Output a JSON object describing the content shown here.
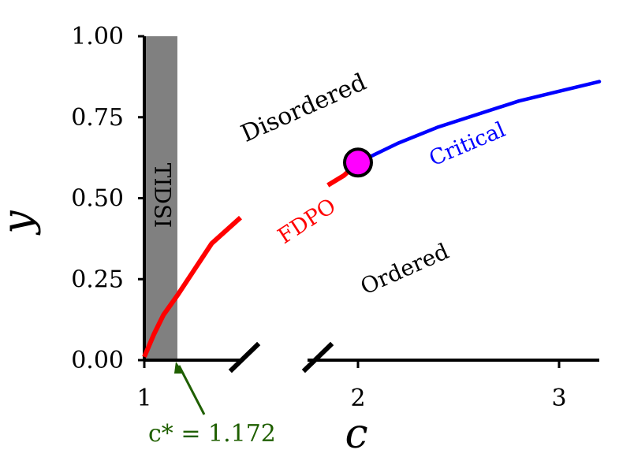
{
  "chart_data": {
    "type": "line",
    "xlabel": "c",
    "ylabel": "y",
    "x_ticks": [
      {
        "value": 1,
        "label": "1"
      },
      {
        "value": 2,
        "label": "2"
      },
      {
        "value": 3,
        "label": "3"
      }
    ],
    "y_ticks": [
      {
        "value": 0,
        "label": "0.00"
      },
      {
        "value": 0.25,
        "label": "0.25"
      },
      {
        "value": 0.5,
        "label": "0.50"
      },
      {
        "value": 0.75,
        "label": "0.75"
      },
      {
        "value": 1.0,
        "label": "1.00"
      }
    ],
    "ylim": [
      0,
      1
    ],
    "xlim_left_segment": [
      1,
      1.5
    ],
    "xlim_right_segment": [
      1.5,
      3.2
    ],
    "axis_break": true,
    "grid": false,
    "shaded_region": {
      "label": "TIDSI",
      "x_start": 1.0,
      "x_end": 1.172,
      "color": "#808080"
    },
    "series": [
      {
        "name": "FDPO",
        "color": "#ff0000",
        "segments": [
          [
            [
              1.0,
              0.01
            ],
            [
              1.05,
              0.08
            ],
            [
              1.1,
              0.14
            ],
            [
              1.172,
              0.2
            ],
            [
              1.25,
              0.27
            ],
            [
              1.35,
              0.36
            ],
            [
              1.5,
              0.44
            ]
          ],
          [
            [
              1.85,
              0.54
            ],
            [
              1.93,
              0.57
            ],
            [
              2.0,
              0.61
            ]
          ]
        ]
      },
      {
        "name": "Critical",
        "color": "#0000ff",
        "points": [
          [
            2.0,
            0.61
          ],
          [
            2.2,
            0.67
          ],
          [
            2.4,
            0.72
          ],
          [
            2.6,
            0.76
          ],
          [
            2.8,
            0.8
          ],
          [
            3.0,
            0.83
          ],
          [
            3.2,
            0.86
          ]
        ]
      }
    ],
    "critical_point": {
      "x": 2.0,
      "y": 0.61,
      "color": "#ff00ff"
    },
    "region_labels": [
      {
        "text": "Disordered",
        "x": 1.55,
        "y": 0.8
      },
      {
        "text": "Ordered",
        "x": 2.25,
        "y": 0.27
      },
      {
        "text": "FDPO",
        "x": 1.55,
        "y": 0.425,
        "color": "#ff0000"
      },
      {
        "text": "Critical",
        "x": 2.55,
        "y": 0.66,
        "color": "#0000ff"
      }
    ],
    "annotation": {
      "text": "c* = 1.172",
      "x": 1.172,
      "color": "#1f5f00"
    },
    "colors": {
      "fdpo": "#ff0000",
      "critical": "#0000ff",
      "point": "#ff00ff",
      "tidsi": "#808080",
      "annotation": "#1f5f00",
      "axis": "#000000"
    }
  }
}
